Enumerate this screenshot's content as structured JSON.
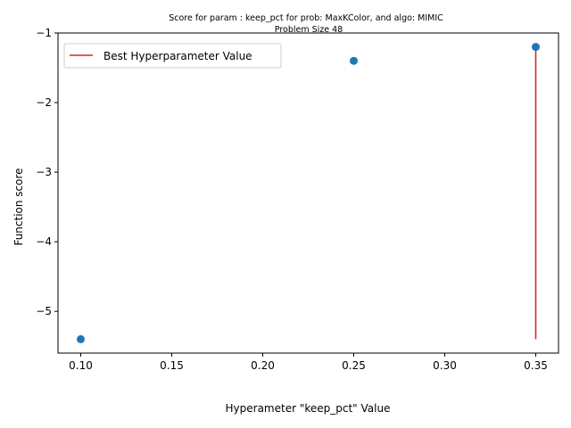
{
  "chart_data": {
    "type": "scatter",
    "title_line1": "Score for param : keep_pct for prob: MaxKColor, and algo: MIMIC",
    "title_line2": "Problem Size 48",
    "xlabel": "Hyperameter \"keep_pct\" Value",
    "ylabel": "Function score",
    "xlim": [
      0.0875,
      0.3625
    ],
    "ylim": [
      -5.6,
      -1.0
    ],
    "xticks": [
      0.1,
      0.15,
      0.2,
      0.25,
      0.3,
      0.35
    ],
    "xtick_labels": [
      "0.10",
      "0.15",
      "0.20",
      "0.25",
      "0.30",
      "0.35"
    ],
    "yticks": [
      -5,
      -4,
      -3,
      -2,
      -1
    ],
    "ytick_labels": [
      "−5",
      "−4",
      "−3",
      "−2",
      "−1"
    ],
    "points": [
      {
        "x": 0.1,
        "y": -5.4
      },
      {
        "x": 0.25,
        "y": -1.4
      },
      {
        "x": 0.35,
        "y": -1.2
      }
    ],
    "best_line": {
      "x": 0.35,
      "y_from": -5.4,
      "y_to": -1.2
    },
    "legend": {
      "label": "Best Hyperparameter Value",
      "placement": "top-left"
    },
    "colors": {
      "points": "#1f77b4",
      "best_line": "#d62728"
    },
    "grid": false
  }
}
